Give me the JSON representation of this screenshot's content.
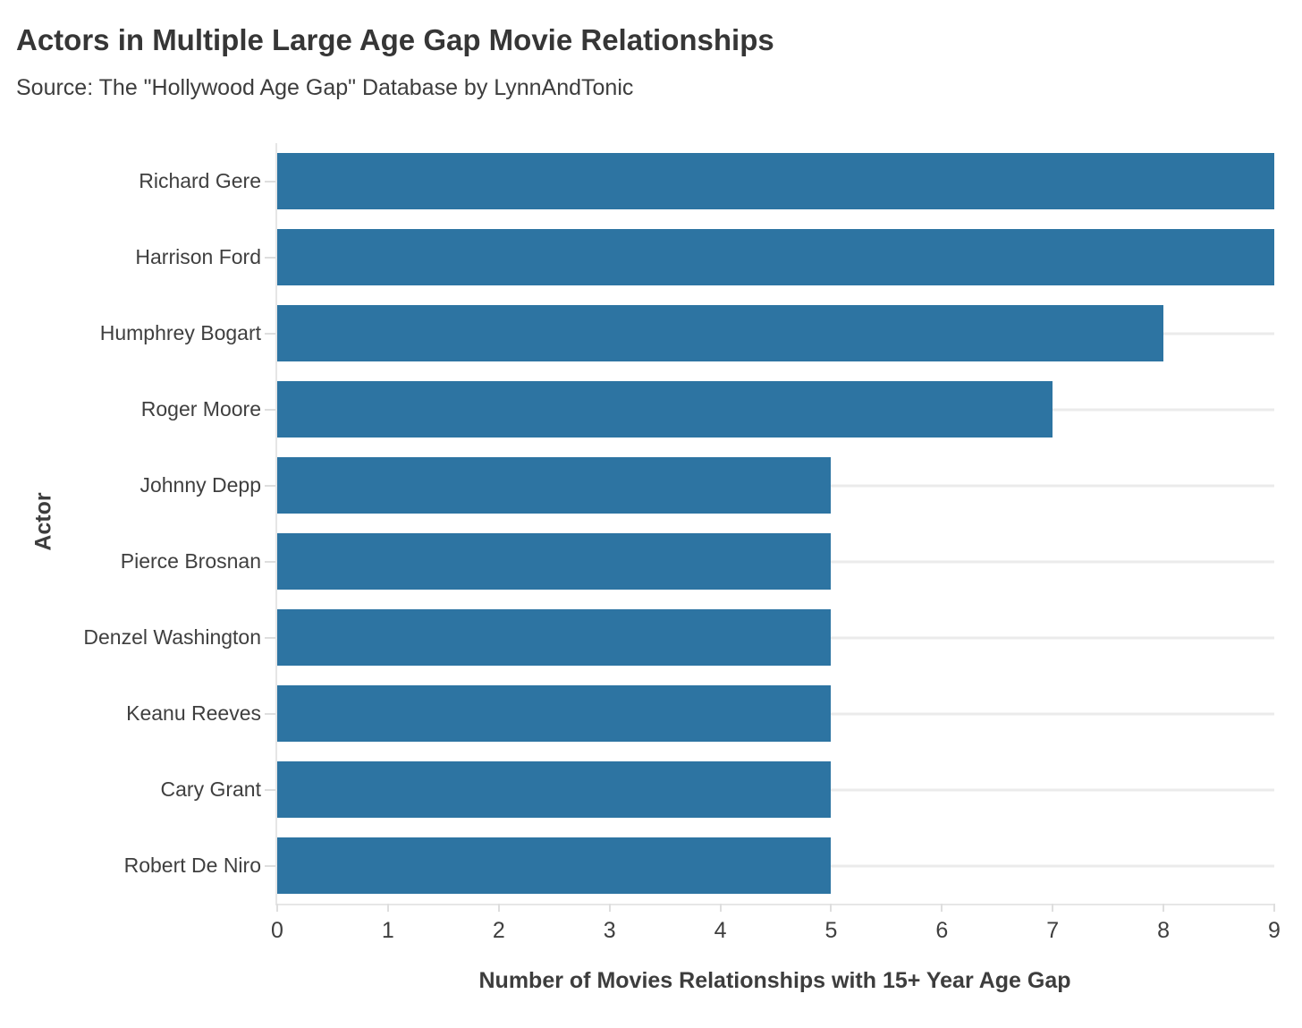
{
  "header": {
    "title": "Actors in Multiple Large Age Gap Movie Relationships",
    "subtitle": "Source: The \"Hollywood Age Gap\" Database by LynnAndTonic"
  },
  "chart_data": {
    "type": "bar",
    "orientation": "horizontal",
    "title": "Actors in Multiple Large Age Gap Movie Relationships",
    "subtitle": "Source: The \"Hollywood Age Gap\" Database by LynnAndTonic",
    "categories": [
      "Richard Gere",
      "Harrison Ford",
      "Humphrey Bogart",
      "Roger Moore",
      "Johnny Depp",
      "Pierce Brosnan",
      "Denzel Washington",
      "Keanu Reeves",
      "Cary Grant",
      "Robert De Niro"
    ],
    "values": [
      9,
      9,
      8,
      7,
      5,
      5,
      5,
      5,
      5,
      5
    ],
    "xlabel": "Number of Movies Relationships with 15+ Year Age Gap",
    "ylabel": "Actor",
    "xlim": [
      0,
      9
    ],
    "xticks": [
      0,
      1,
      2,
      3,
      4,
      5,
      6,
      7,
      8,
      9
    ],
    "grid": "horizontal-category-lines-only",
    "legend": "none",
    "colors": {
      "bar": "#2d74a2",
      "axis_line": "#e6e6e6",
      "tick_mark": "#dedede",
      "gridline": "#ebebeb",
      "tick_text": "#3f3f3f",
      "title_text": "#363636",
      "axis_title_text": "#3d3d3d"
    }
  }
}
